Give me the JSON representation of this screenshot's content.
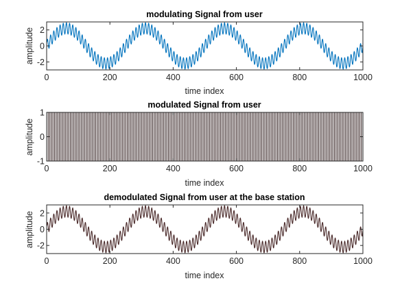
{
  "chart_data": [
    {
      "type": "line",
      "title": "modulating Signal from user",
      "xlabel": "time index",
      "ylabel": "amplitude",
      "xlim": [
        0,
        1000
      ],
      "ylim": [
        -3,
        3
      ],
      "xticks": [
        0,
        200,
        400,
        600,
        800,
        1000
      ],
      "yticks": [
        -2,
        0,
        2
      ],
      "grid": false,
      "color": "#0072BD",
      "series": [
        {
          "signal": "sum_of_sines",
          "components": [
            {
              "amplitude": 2.2,
              "period": 250,
              "phase_deg": 0
            },
            {
              "amplitude": 0.7,
              "period": 10,
              "phase_deg": 0
            }
          ],
          "x_range": [
            1,
            1000
          ]
        }
      ]
    },
    {
      "type": "line",
      "title": "modulated Signal from user",
      "xlabel": "time index",
      "ylabel": "amplitude",
      "xlim": [
        0,
        1000
      ],
      "ylim": [
        -1,
        1
      ],
      "xticks": [
        0,
        200,
        400,
        600,
        800,
        1000
      ],
      "yticks": [
        -1,
        0,
        1
      ],
      "grid": false,
      "color": "#3D2B2B",
      "series": [
        {
          "signal": "square_wave",
          "amplitude": 1,
          "period": 10,
          "x_range": [
            1,
            1000
          ]
        }
      ]
    },
    {
      "type": "line",
      "title": "demodulated Signal from user at the base station",
      "xlabel": "time index",
      "ylabel": "amplitude",
      "xlim": [
        0,
        1000
      ],
      "ylim": [
        -3,
        3
      ],
      "xticks": [
        0,
        200,
        400,
        600,
        800,
        1000
      ],
      "yticks": [
        -2,
        0,
        2
      ],
      "grid": false,
      "color": "#4A2A2A",
      "series": [
        {
          "signal": "sum_of_sines",
          "components": [
            {
              "amplitude": 2.2,
              "period": 250,
              "phase_deg": 0
            },
            {
              "amplitude": 0.7,
              "period": 10,
              "phase_deg": 0
            }
          ],
          "x_range": [
            1,
            1000
          ]
        }
      ]
    }
  ]
}
